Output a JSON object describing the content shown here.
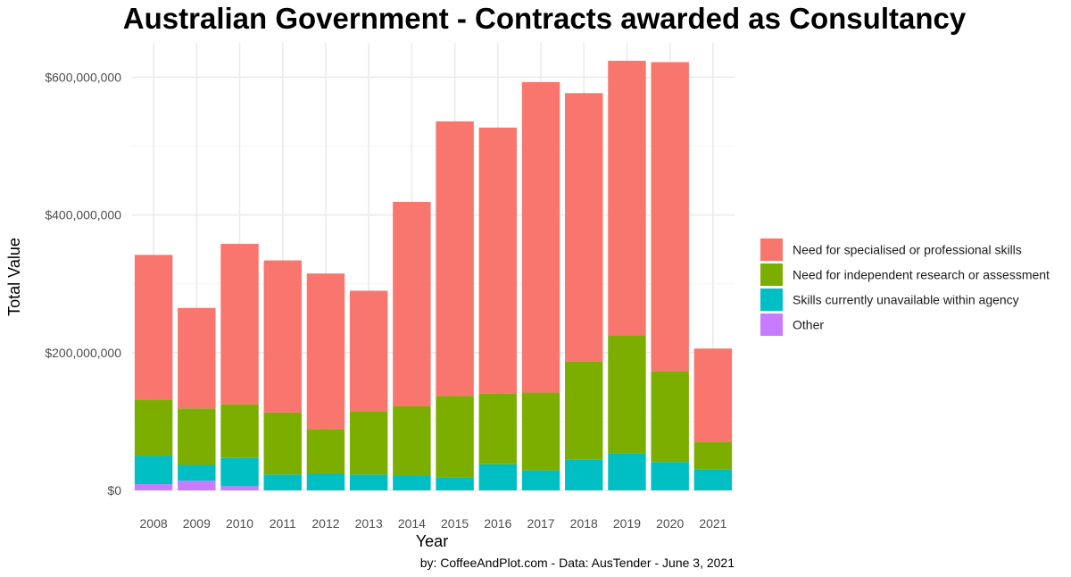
{
  "chart_data": {
    "type": "bar",
    "stacked": true,
    "title": "Australian Government - Contracts awarded as Consultancy",
    "xlabel": "Year",
    "ylabel": "Total Value",
    "caption": "by: CoffeeAndPlot.com - Data: AusTender - June 3, 2021",
    "ylim": [
      0,
      650000000
    ],
    "y_ticks": [
      0,
      200000000,
      400000000,
      600000000
    ],
    "y_tick_labels": [
      "$0",
      "$200,000,000",
      "$400,000,000",
      "$600,000,000"
    ],
    "grid": true,
    "legend_position": "right",
    "categories": [
      "2008",
      "2009",
      "2010",
      "2011",
      "2012",
      "2013",
      "2014",
      "2015",
      "2016",
      "2017",
      "2018",
      "2019",
      "2020",
      "2021"
    ],
    "series": [
      {
        "name": "Other",
        "color": "#C77CFF",
        "values": [
          9000000,
          14000000,
          6000000,
          0,
          0,
          0,
          0,
          0,
          0,
          0,
          0,
          0,
          0,
          0
        ]
      },
      {
        "name": "Skills currently unavailable within agency",
        "color": "#00BFC4",
        "values": [
          41000000,
          23000000,
          41000000,
          23000000,
          24000000,
          23000000,
          22000000,
          19000000,
          38000000,
          29000000,
          45000000,
          54000000,
          41000000,
          30000000
        ]
      },
      {
        "name": "Need for independent research or assessment",
        "color": "#7CAE00",
        "values": [
          82000000,
          82000000,
          78000000,
          90000000,
          65000000,
          92000000,
          100000000,
          118000000,
          103000000,
          113000000,
          142000000,
          171000000,
          132000000,
          40000000
        ]
      },
      {
        "name": "Need for specialised or professional skills",
        "color": "#F8766D",
        "values": [
          210000000,
          146000000,
          233000000,
          221000000,
          226000000,
          175000000,
          297000000,
          399000000,
          386000000,
          451000000,
          390000000,
          399000000,
          449000000,
          136000000
        ]
      }
    ],
    "legend_order": [
      "Need for specialised or professional skills",
      "Need for independent research or assessment",
      "Skills currently unavailable within agency",
      "Other"
    ]
  }
}
